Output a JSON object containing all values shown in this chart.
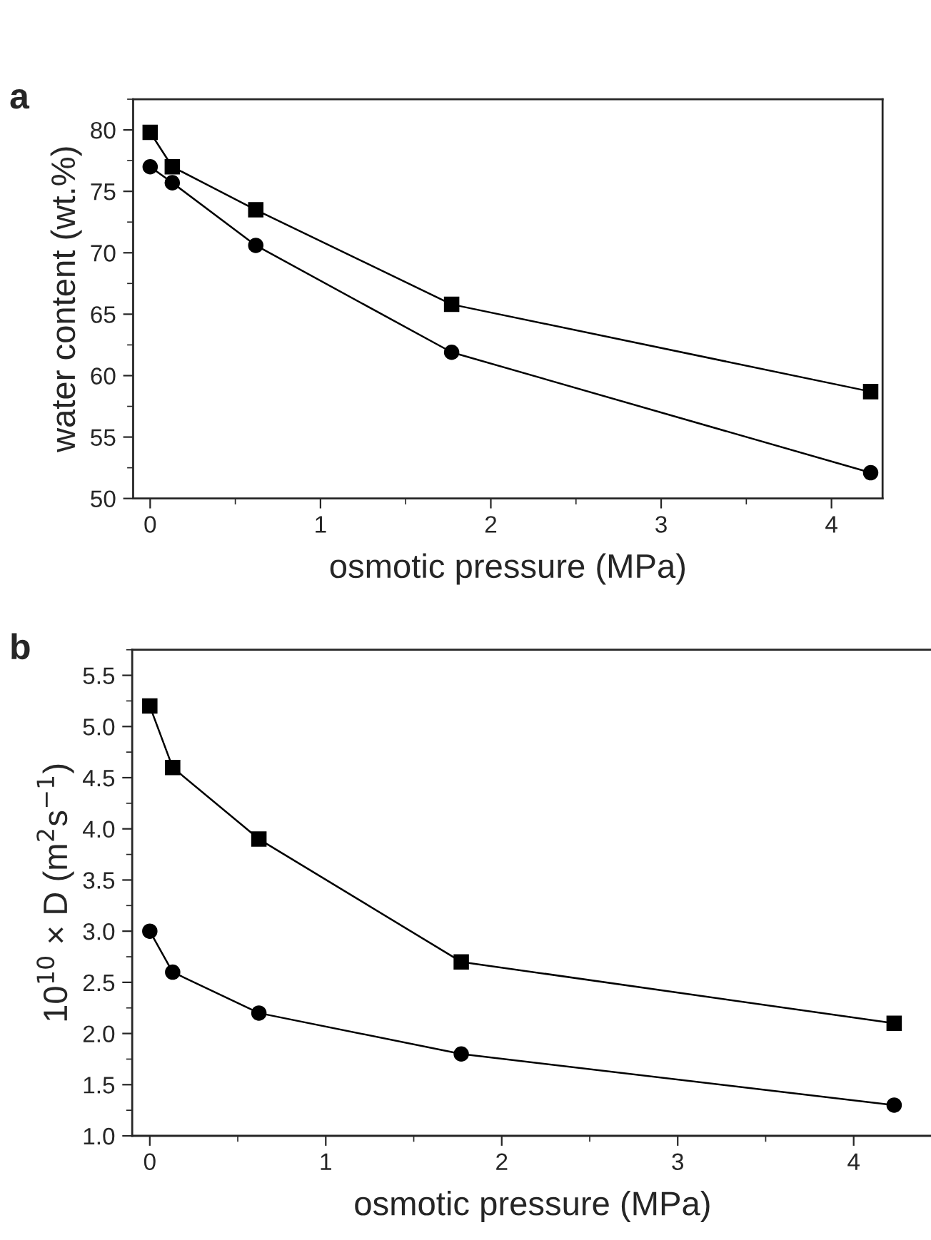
{
  "chart_data": [
    {
      "type": "line",
      "annotations": [
        "a"
      ],
      "xlabel": "osmotic pressure (MPa)",
      "ylabel": "water content (wt.%)",
      "x": [
        0,
        0.13,
        0.62,
        1.77,
        4.23
      ],
      "series": [
        {
          "color": "#000000",
          "marker": "square",
          "values": [
            79.8,
            77.0,
            73.5,
            65.8,
            58.7
          ]
        },
        {
          "color": "#000000",
          "marker": "circle",
          "values": [
            77.0,
            75.7,
            70.6,
            61.9,
            52.1
          ]
        }
      ],
      "xlim": [
        -0.1,
        4.3
      ],
      "ylim": [
        50,
        82.5
      ],
      "xticks": [
        0,
        1,
        2,
        3,
        4
      ],
      "yticks": [
        50,
        55,
        60,
        65,
        70,
        75,
        80
      ],
      "grid": false,
      "legend": false,
      "line_style": "solid"
    },
    {
      "type": "line",
      "annotations": [
        "b"
      ],
      "xlabel": "osmotic pressure (MPa)",
      "ylabel": "10$^{10}$ × D (m$^{2}$s$^{−1}$)",
      "x": [
        0,
        0.13,
        0.62,
        1.77,
        4.23
      ],
      "series": [
        {
          "color": "#000000",
          "marker": "square",
          "values": [
            5.2,
            4.6,
            3.9,
            2.7,
            2.1
          ]
        },
        {
          "color": "#000000",
          "marker": "circle",
          "values": [
            3.0,
            2.6,
            2.2,
            1.8,
            1.3
          ]
        }
      ],
      "xlim": [
        -0.1,
        4.45
      ],
      "ylim": [
        1.0,
        5.75
      ],
      "xticks": [
        0,
        1,
        2,
        3,
        4
      ],
      "yticks": [
        {
          "value": 1.0,
          "label": "1.0"
        },
        1.5,
        {
          "value": 2.0,
          "label": "2.0"
        },
        2.5,
        {
          "value": 3.0,
          "label": "3.0"
        },
        3.5,
        {
          "value": 4.0,
          "label": "4.0"
        },
        4.5,
        {
          "value": 5.0,
          "label": "5.0"
        },
        5.5
      ],
      "grid": false,
      "legend": false,
      "line_style": "solid"
    }
  ]
}
